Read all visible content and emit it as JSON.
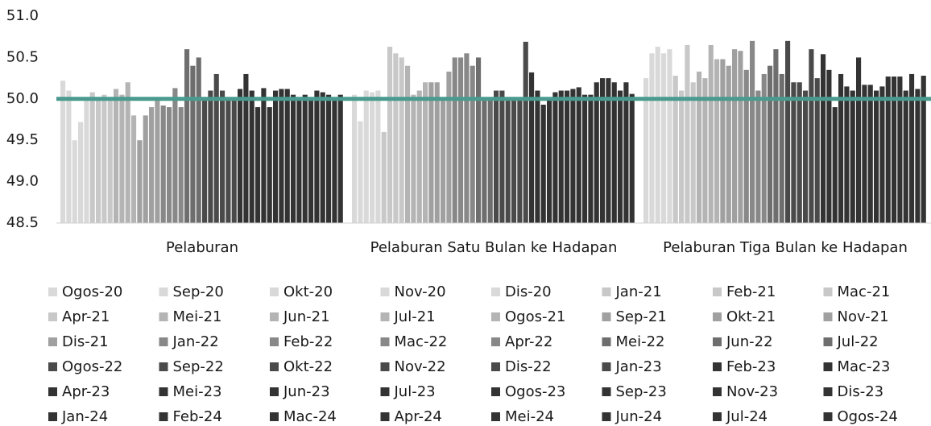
{
  "chart_data": {
    "type": "bar",
    "categories": [
      "Pelaburan",
      "Pelaburan Satu Bulan ke Hadapan",
      "Pelaburan Tiga Bulan ke Hadapan"
    ],
    "ylim": [
      48.5,
      51.0
    ],
    "yticks": [
      {
        "value": 48.5,
        "label": "48.5"
      },
      {
        "value": 49,
        "label": "49.0"
      },
      {
        "value": 49.5,
        "label": "49.5"
      },
      {
        "value": 50,
        "label": "50.0"
      },
      {
        "value": 50.5,
        "label": "50.5"
      },
      {
        "value": 51,
        "label": "51.0"
      }
    ],
    "reference_line": {
      "value": 50,
      "color": "#4a9a8f"
    },
    "series": [
      {
        "name": "Ogos-20",
        "color": "#d9d9d9",
        "values": [
          50.22,
          50.05,
          50.25
        ]
      },
      {
        "name": "Sep-20",
        "color": "#d9d9d9",
        "values": [
          50.1,
          49.73,
          50.55
        ]
      },
      {
        "name": "Okt-20",
        "color": "#d9d9d9",
        "values": [
          49.5,
          50.1,
          50.63
        ]
      },
      {
        "name": "Nov-20",
        "color": "#d9d9d9",
        "values": [
          49.72,
          50.08,
          50.55
        ]
      },
      {
        "name": "Dis-20",
        "color": "#d9d9d9",
        "values": [
          50.0,
          50.1,
          50.6
        ]
      },
      {
        "name": "Jan-21",
        "color": "#c8c8c8",
        "values": [
          50.08,
          49.6,
          50.28
        ]
      },
      {
        "name": "Feb-21",
        "color": "#c8c8c8",
        "values": [
          50.0,
          50.63,
          50.1
        ]
      },
      {
        "name": "Mac-21",
        "color": "#c8c8c8",
        "values": [
          50.05,
          50.55,
          50.65
        ]
      },
      {
        "name": "Apr-21",
        "color": "#c8c8c8",
        "values": [
          50.0,
          50.5,
          50.2
        ]
      },
      {
        "name": "Mei-21",
        "color": "#b4b4b4",
        "values": [
          50.12,
          50.4,
          50.33
        ]
      },
      {
        "name": "Jun-21",
        "color": "#b4b4b4",
        "values": [
          50.05,
          50.05,
          50.25
        ]
      },
      {
        "name": "Jul-21",
        "color": "#b4b4b4",
        "values": [
          50.2,
          50.1,
          50.65
        ]
      },
      {
        "name": "Ogos-21",
        "color": "#b4b4b4",
        "values": [
          49.8,
          50.2,
          50.48
        ]
      },
      {
        "name": "Sep-21",
        "color": "#a0a0a0",
        "values": [
          49.5,
          50.2,
          50.48
        ]
      },
      {
        "name": "Okt-21",
        "color": "#a0a0a0",
        "values": [
          49.8,
          50.2,
          50.4
        ]
      },
      {
        "name": "Nov-21",
        "color": "#a0a0a0",
        "values": [
          49.9,
          50.0,
          50.6
        ]
      },
      {
        "name": "Dis-21",
        "color": "#a0a0a0",
        "values": [
          50.0,
          50.33,
          50.58
        ]
      },
      {
        "name": "Jan-22",
        "color": "#888888",
        "values": [
          49.92,
          50.5,
          50.35
        ]
      },
      {
        "name": "Feb-22",
        "color": "#888888",
        "values": [
          49.9,
          50.5,
          50.7
        ]
      },
      {
        "name": "Mac-22",
        "color": "#888888",
        "values": [
          50.13,
          50.55,
          50.1
        ]
      },
      {
        "name": "Apr-22",
        "color": "#888888",
        "values": [
          49.9,
          50.4,
          50.3
        ]
      },
      {
        "name": "Mei-22",
        "color": "#6e6e6e",
        "values": [
          50.6,
          50.5,
          50.4
        ]
      },
      {
        "name": "Jun-22",
        "color": "#6e6e6e",
        "values": [
          50.4,
          50.0,
          50.6
        ]
      },
      {
        "name": "Jul-22",
        "color": "#6e6e6e",
        "values": [
          50.5,
          50.0,
          50.3
        ]
      },
      {
        "name": "Ogos-22",
        "color": "#4a4a4a",
        "values": [
          50.0,
          50.1,
          50.7
        ]
      },
      {
        "name": "Sep-22",
        "color": "#4a4a4a",
        "values": [
          50.1,
          50.1,
          50.2
        ]
      },
      {
        "name": "Okt-22",
        "color": "#4a4a4a",
        "values": [
          50.3,
          50.0,
          50.2
        ]
      },
      {
        "name": "Nov-22",
        "color": "#4a4a4a",
        "values": [
          50.1,
          50.0,
          50.1
        ]
      },
      {
        "name": "Dis-22",
        "color": "#4a4a4a",
        "values": [
          50.0,
          50.0,
          50.6
        ]
      },
      {
        "name": "Jan-23",
        "color": "#4a4a4a",
        "values": [
          50.0,
          50.69,
          50.25
        ]
      },
      {
        "name": "Feb-23",
        "color": "#333333",
        "values": [
          50.12,
          50.32,
          50.54
        ]
      },
      {
        "name": "Mac-23",
        "color": "#333333",
        "values": [
          50.3,
          50.1,
          50.35
        ]
      },
      {
        "name": "Apr-23",
        "color": "#333333",
        "values": [
          50.1,
          49.93,
          49.9
        ]
      },
      {
        "name": "Mei-23",
        "color": "#333333",
        "values": [
          49.9,
          50.0,
          50.3
        ]
      },
      {
        "name": "Jun-23",
        "color": "#333333",
        "values": [
          50.13,
          50.08,
          50.15
        ]
      },
      {
        "name": "Jul-23",
        "color": "#333333",
        "values": [
          49.9,
          50.1,
          50.1
        ]
      },
      {
        "name": "Ogos-23",
        "color": "#333333",
        "values": [
          50.1,
          50.1,
          50.5
        ]
      },
      {
        "name": "Sep-23",
        "color": "#333333",
        "values": [
          50.12,
          50.12,
          50.17
        ]
      },
      {
        "name": "Nov-23",
        "color": "#333333",
        "values": [
          50.12,
          50.14,
          50.17
        ]
      },
      {
        "name": "Dis-23",
        "color": "#333333",
        "values": [
          50.05,
          50.05,
          50.1
        ]
      },
      {
        "name": "Jan-24",
        "color": "#333333",
        "values": [
          50.0,
          50.05,
          50.15
        ]
      },
      {
        "name": "Feb-24",
        "color": "#333333",
        "values": [
          50.05,
          50.2,
          50.27
        ]
      },
      {
        "name": "Mac-24",
        "color": "#333333",
        "values": [
          50.0,
          50.25,
          50.27
        ]
      },
      {
        "name": "Apr-24",
        "color": "#333333",
        "values": [
          50.1,
          50.25,
          50.27
        ]
      },
      {
        "name": "Mei-24",
        "color": "#333333",
        "values": [
          50.08,
          50.2,
          50.1
        ]
      },
      {
        "name": "Jun-24",
        "color": "#333333",
        "values": [
          50.05,
          50.1,
          50.3
        ]
      },
      {
        "name": "Jul-24",
        "color": "#333333",
        "values": [
          50.0,
          50.2,
          50.12
        ]
      },
      {
        "name": "Ogos-24",
        "color": "#333333",
        "values": [
          50.05,
          50.06,
          50.28
        ]
      }
    ]
  }
}
